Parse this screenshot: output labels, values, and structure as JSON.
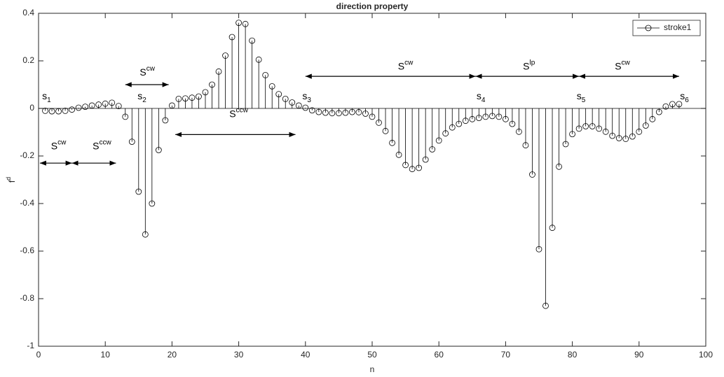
{
  "chart_data": {
    "type": "stem",
    "title": "direction property",
    "xlabel": "n",
    "ylabel": {
      "text": "f",
      "sup": "d"
    },
    "x": [
      1,
      2,
      3,
      4,
      5,
      6,
      7,
      8,
      9,
      10,
      11,
      12,
      13,
      14,
      15,
      16,
      17,
      18,
      19,
      20,
      21,
      22,
      23,
      24,
      25,
      26,
      27,
      28,
      29,
      30,
      31,
      32,
      33,
      34,
      35,
      36,
      37,
      38,
      39,
      40,
      41,
      42,
      43,
      44,
      45,
      46,
      47,
      48,
      49,
      50,
      51,
      52,
      53,
      54,
      55,
      56,
      57,
      58,
      59,
      60,
      61,
      62,
      63,
      64,
      65,
      66,
      67,
      68,
      69,
      70,
      71,
      72,
      73,
      74,
      75,
      76,
      77,
      78,
      79,
      80,
      81,
      82,
      83,
      84,
      85,
      86,
      87,
      88,
      89,
      90,
      91,
      92,
      93,
      94,
      95,
      96
    ],
    "series": [
      {
        "name": "stroke1",
        "color": "#000000",
        "values": [
          -0.01,
          -0.012,
          -0.012,
          -0.01,
          -0.005,
          0.003,
          0.007,
          0.012,
          0.016,
          0.02,
          0.024,
          0.01,
          -0.035,
          -0.14,
          -0.35,
          -0.53,
          -0.4,
          -0.175,
          -0.05,
          0.012,
          0.04,
          0.042,
          0.045,
          0.05,
          0.068,
          0.1,
          0.155,
          0.222,
          0.3,
          0.36,
          0.355,
          0.285,
          0.205,
          0.14,
          0.093,
          0.06,
          0.04,
          0.025,
          0.012,
          0.003,
          -0.008,
          -0.015,
          -0.018,
          -0.02,
          -0.02,
          -0.018,
          -0.015,
          -0.016,
          -0.022,
          -0.035,
          -0.06,
          -0.095,
          -0.145,
          -0.195,
          -0.238,
          -0.255,
          -0.25,
          -0.215,
          -0.172,
          -0.135,
          -0.105,
          -0.08,
          -0.065,
          -0.052,
          -0.045,
          -0.04,
          -0.035,
          -0.032,
          -0.035,
          -0.045,
          -0.065,
          -0.098,
          -0.155,
          -0.278,
          -0.592,
          -0.83,
          -0.502,
          -0.245,
          -0.15,
          -0.108,
          -0.085,
          -0.075,
          -0.075,
          -0.085,
          -0.098,
          -0.115,
          -0.125,
          -0.128,
          -0.118,
          -0.098,
          -0.072,
          -0.045,
          -0.015,
          0.008,
          0.018,
          0.018
        ]
      }
    ],
    "xlim": [
      0,
      100
    ],
    "ylim": [
      -1,
      0.4
    ],
    "xticks": [
      0,
      10,
      20,
      30,
      40,
      50,
      60,
      70,
      80,
      90,
      100
    ],
    "yticks": [
      -1,
      -0.8,
      -0.6,
      -0.4,
      -0.2,
      0,
      0.2,
      0.4
    ],
    "legend": "upper right",
    "annotations": [
      {
        "text": "s",
        "sub": "1",
        "x": 1.2,
        "y": 0.05
      },
      {
        "text": "s",
        "sub": "2",
        "x": 15.5,
        "y": 0.05
      },
      {
        "text": "s",
        "sub": "3",
        "x": 40.2,
        "y": 0.05
      },
      {
        "text": "s",
        "sub": "4",
        "x": 66.3,
        "y": 0.05
      },
      {
        "text": "s",
        "sub": "5",
        "x": 81.3,
        "y": 0.05
      },
      {
        "text": "s",
        "sub": "6",
        "x": 96.8,
        "y": 0.05
      },
      {
        "text": "S",
        "sup": "cw",
        "x": 3,
        "y": -0.16
      },
      {
        "text": "S",
        "sup": "ccw",
        "x": 9.5,
        "y": -0.16
      },
      {
        "text": "S",
        "sup": "cw",
        "x": 16.3,
        "y": 0.15
      },
      {
        "text": "S",
        "sup": "ccw",
        "x": 30,
        "y": -0.025
      },
      {
        "text": "S",
        "sup": "cw",
        "x": 55,
        "y": 0.175
      },
      {
        "text": "S",
        "sup": "lp",
        "x": 73.5,
        "y": 0.175
      },
      {
        "text": "S",
        "sup": "cw",
        "x": 87.5,
        "y": 0.175
      }
    ],
    "arrows": [
      {
        "x1": 0.2,
        "x2": 5,
        "y": -0.23
      },
      {
        "x1": 5,
        "x2": 11.6,
        "y": -0.23
      },
      {
        "x1": 13,
        "x2": 19.5,
        "y": 0.1
      },
      {
        "x1": 20.5,
        "x2": 38.5,
        "y": -0.11
      },
      {
        "x1": 40,
        "x2": 65.5,
        "y": 0.135
      },
      {
        "x1": 65.5,
        "x2": 81,
        "y": 0.135
      },
      {
        "x1": 81,
        "x2": 96,
        "y": 0.135
      }
    ]
  }
}
